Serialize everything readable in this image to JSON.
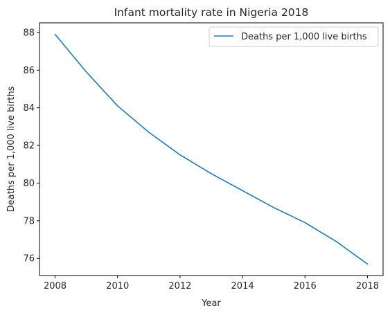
{
  "chart_data": {
    "type": "line",
    "title": "Infant mortality rate in Nigeria 2018",
    "xlabel": "Year",
    "ylabel": "Deaths per 1,000 live births",
    "x": [
      2008,
      2009,
      2010,
      2011,
      2012,
      2013,
      2014,
      2015,
      2016,
      2017,
      2018
    ],
    "series": [
      {
        "name": "Deaths per 1,000 live births",
        "values": [
          87.9,
          85.9,
          84.1,
          82.7,
          81.5,
          80.5,
          79.6,
          78.7,
          77.9,
          76.9,
          75.7
        ],
        "color": "#1f77b4"
      }
    ],
    "xticks": [
      2008,
      2010,
      2012,
      2014,
      2016,
      2018
    ],
    "yticks": [
      76,
      78,
      80,
      82,
      84,
      86,
      88
    ],
    "xlim": [
      2007.5,
      2018.5
    ],
    "ylim": [
      75.09,
      88.51
    ],
    "grid": false,
    "legend_position": "upper-right"
  }
}
